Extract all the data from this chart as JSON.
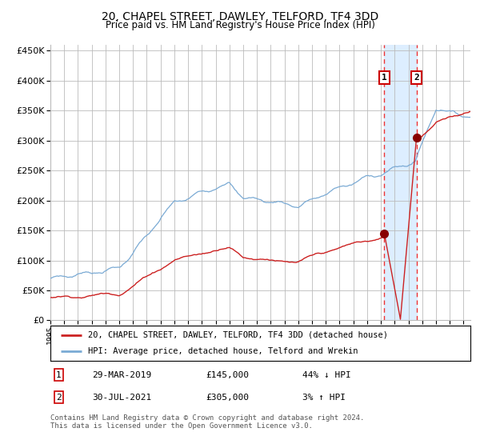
{
  "title": "20, CHAPEL STREET, DAWLEY, TELFORD, TF4 3DD",
  "subtitle": "Price paid vs. HM Land Registry's House Price Index (HPI)",
  "title_fontsize": 10,
  "subtitle_fontsize": 8.5,
  "hpi_color": "#7aaad4",
  "price_color": "#cc2222",
  "marker_color": "#880000",
  "bg_color": "#ffffff",
  "grid_color": "#bbbbbb",
  "highlight_bg": "#ddeeff",
  "dashed_line_color": "#ee3333",
  "ylim": [
    0,
    460000
  ],
  "yticks": [
    0,
    50000,
    100000,
    150000,
    200000,
    250000,
    300000,
    350000,
    400000,
    450000
  ],
  "year_start": 1995,
  "year_end": 2025,
  "t1_year": 2019.25,
  "t2_year": 2021.583,
  "t1_price": 145000,
  "t2_price": 305000,
  "legend_line1": "20, CHAPEL STREET, DAWLEY, TELFORD, TF4 3DD (detached house)",
  "legend_line2": "HPI: Average price, detached house, Telford and Wrekin",
  "row1_label": "1",
  "row1_date": "29-MAR-2019",
  "row1_price": "£145,000",
  "row1_pct": "44% ↓ HPI",
  "row2_label": "2",
  "row2_date": "30-JUL-2021",
  "row2_price": "£305,000",
  "row2_pct": "3% ↑ HPI",
  "footer": "Contains HM Land Registry data © Crown copyright and database right 2024.\nThis data is licensed under the Open Government Licence v3.0."
}
